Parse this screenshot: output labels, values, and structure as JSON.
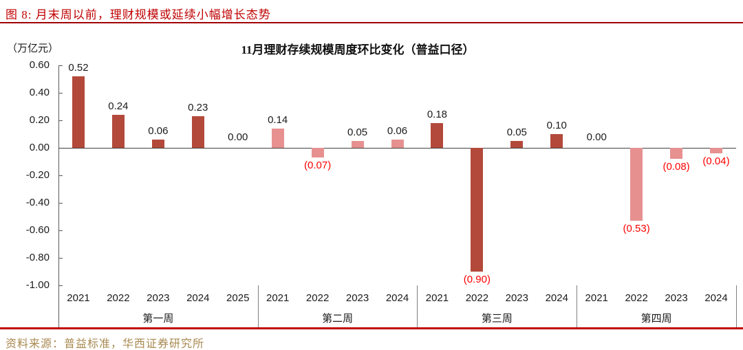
{
  "figure": {
    "title": "图 8:  月末周以前，理财规模或延续小幅增长态势"
  },
  "chart_data": {
    "type": "bar",
    "title": "11月理财存续规模周度环比变化（普益口径）",
    "ylabel": "（万亿元）",
    "xlabel": "",
    "ylim": [
      -1.0,
      0.6
    ],
    "ytick_step": 0.2,
    "ytick_labels": [
      "0.60",
      "0.40",
      "0.20",
      "0.00",
      "-0.20",
      "-0.40",
      "-0.60",
      "-0.80",
      "-1.00"
    ],
    "grid": false,
    "legend": "none",
    "value_label_positive_color": "#1a1a1a",
    "value_label_negative_color": "#FF0000",
    "groups": [
      {
        "label": "第一周",
        "bar_color": "#B3493B",
        "categories": [
          "2021",
          "2022",
          "2023",
          "2024",
          "2025"
        ],
        "values": [
          0.52,
          0.24,
          0.06,
          0.23,
          0.0
        ],
        "value_labels": [
          "0.52",
          "0.24",
          "0.06",
          "0.23",
          "0.00"
        ]
      },
      {
        "label": "第二周",
        "bar_color": "#E79090",
        "categories": [
          "2021",
          "2022",
          "2023",
          "2024"
        ],
        "values": [
          0.14,
          -0.07,
          0.05,
          0.06
        ],
        "value_labels": [
          "0.14",
          "(0.07)",
          "0.05",
          "0.06"
        ]
      },
      {
        "label": "第三周",
        "bar_color": "#B3493B",
        "categories": [
          "2021",
          "2022",
          "2023",
          "2024"
        ],
        "values": [
          0.18,
          -0.9,
          0.05,
          0.1
        ],
        "value_labels": [
          "0.18",
          "(0.90)",
          "0.05",
          "0.10"
        ]
      },
      {
        "label": "第四周",
        "bar_color": "#E79090",
        "categories": [
          "2021",
          "2022",
          "2023",
          "2024"
        ],
        "values": [
          0.0,
          -0.53,
          -0.08,
          -0.04
        ],
        "value_labels": [
          "0.00",
          "(0.53)",
          "(0.08)",
          "(0.04)"
        ]
      }
    ]
  },
  "footer": {
    "source": "资料来源：普益标准，华西证券研究所"
  },
  "colors": {
    "figure_title": "#C00000",
    "top_rule": "#A00000",
    "bottom_rule": "#C00000",
    "bar_dark": "#B3493B",
    "bar_light": "#E79090",
    "source_text": "#A98950",
    "axis_line": "#595959"
  }
}
